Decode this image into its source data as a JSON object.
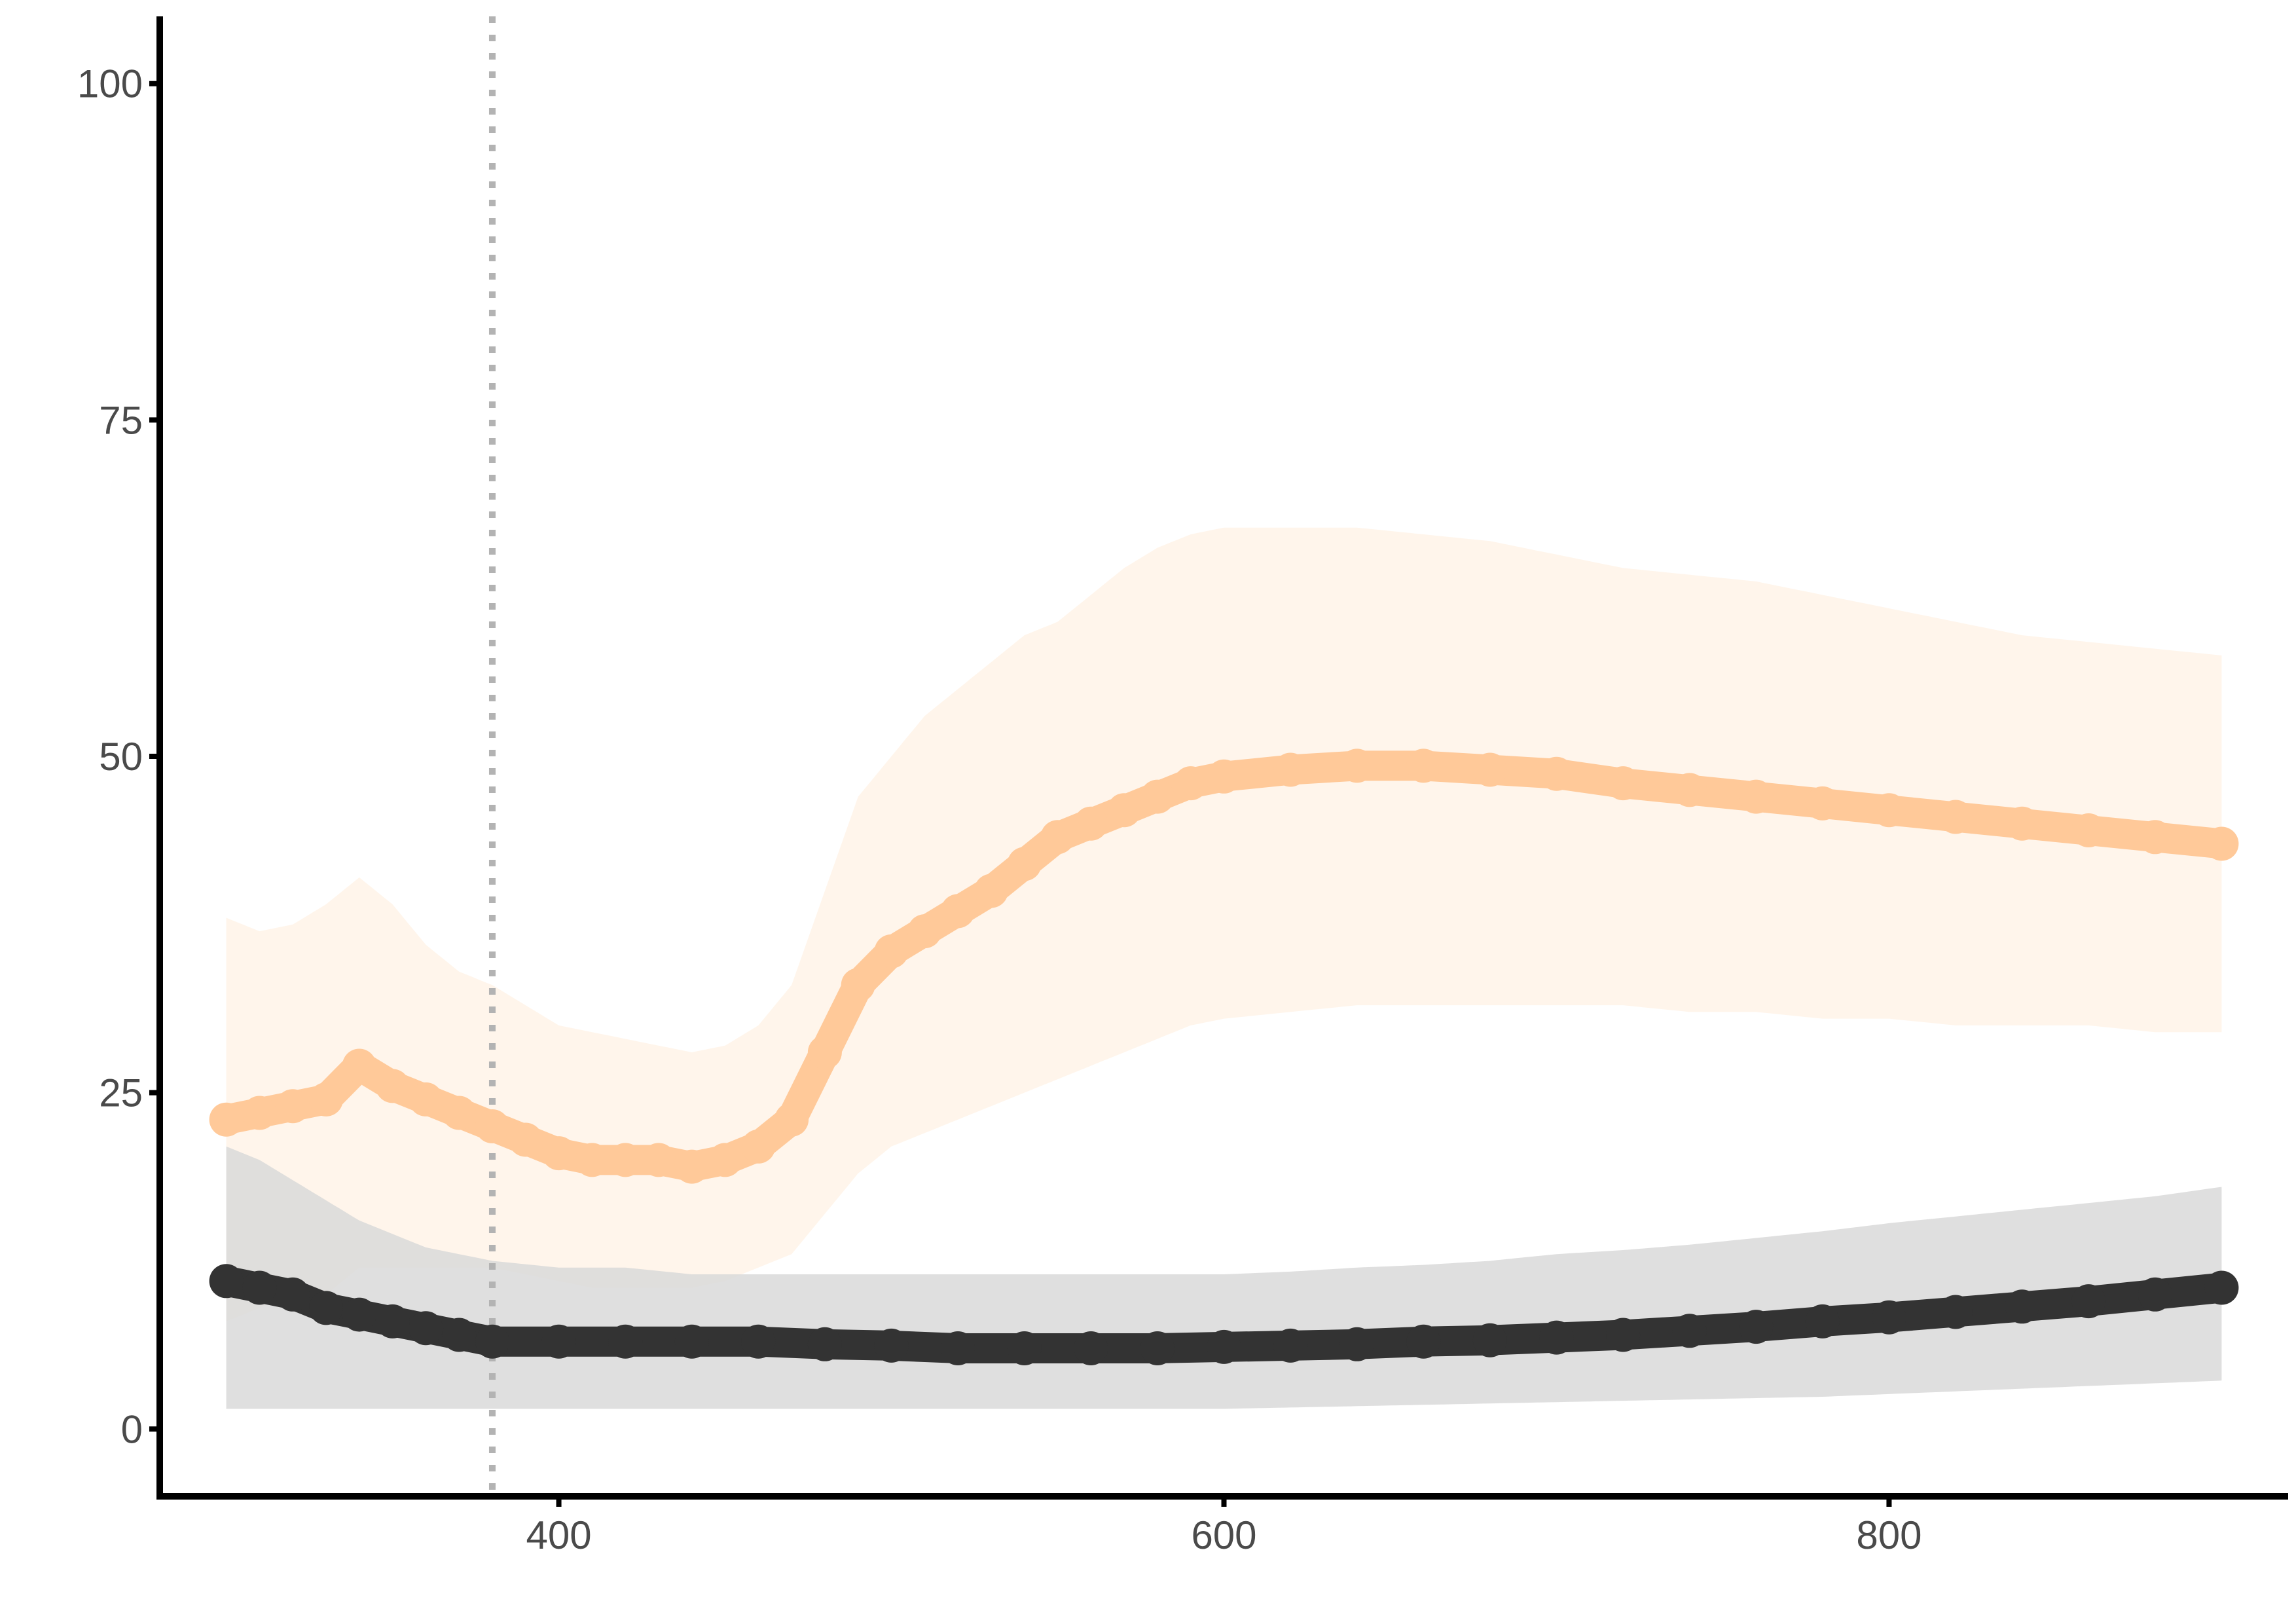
{
  "chart_data": {
    "type": "line",
    "title": "",
    "xlabel": "",
    "ylabel": "",
    "xlim": [
      280,
      920
    ],
    "ylim": [
      -5,
      105
    ],
    "x_ticks": [
      400,
      600,
      800
    ],
    "y_ticks": [
      0,
      25,
      50,
      75,
      100
    ],
    "grid": false,
    "legend": "none",
    "reference_line": {
      "x": 380,
      "style": "dotted",
      "color": "#b3b3b3"
    },
    "series": [
      {
        "color": "#ffc999",
        "band_color": "#ffe8d2",
        "x": [
          300,
          310,
          320,
          330,
          340,
          350,
          360,
          370,
          380,
          390,
          400,
          410,
          420,
          430,
          440,
          450,
          460,
          470,
          480,
          490,
          500,
          510,
          520,
          530,
          540,
          550,
          560,
          570,
          580,
          590,
          600,
          620,
          640,
          660,
          680,
          700,
          720,
          740,
          760,
          780,
          800,
          820,
          840,
          860,
          880,
          900
        ],
        "y": [
          23,
          23.5,
          24,
          24.5,
          27,
          25.5,
          24.5,
          23.5,
          22.5,
          21.5,
          20.5,
          20,
          20,
          20,
          19.5,
          20,
          21,
          23,
          28,
          33,
          35.5,
          37,
          38.5,
          40,
          42,
          44,
          45,
          46,
          47,
          48,
          48.5,
          49,
          49.3,
          49.3,
          49,
          48.7,
          48,
          47.5,
          47,
          46.5,
          46,
          45.5,
          45,
          44.5,
          44,
          43.5
        ],
        "upper": [
          38,
          37,
          37.5,
          39,
          41,
          39,
          36,
          34,
          33,
          31.5,
          30,
          29.5,
          29,
          28.5,
          28,
          28.5,
          30,
          33,
          40,
          47,
          50,
          53,
          55,
          57,
          59,
          60,
          62,
          64,
          65.5,
          66.5,
          67,
          67,
          67,
          66.5,
          66,
          65,
          64,
          63.5,
          63,
          62,
          61,
          60,
          59,
          58.5,
          58,
          57.5
        ],
        "lower": [
          8,
          9,
          10,
          10,
          12,
          12,
          12,
          12,
          12,
          11.5,
          11,
          10.5,
          10.5,
          10.5,
          10.5,
          11,
          12,
          13,
          16,
          19,
          21,
          22,
          23,
          24,
          25,
          26,
          27,
          28,
          29,
          30,
          30.5,
          31,
          31.5,
          31.5,
          31.5,
          31.5,
          31.5,
          31,
          31,
          30.5,
          30.5,
          30,
          30,
          30,
          29.5,
          29.5
        ]
      },
      {
        "color": "#333333",
        "band_color": "#d9d9d9",
        "x": [
          300,
          310,
          320,
          330,
          340,
          350,
          360,
          370,
          380,
          400,
          420,
          440,
          460,
          480,
          500,
          520,
          540,
          560,
          580,
          600,
          620,
          640,
          660,
          680,
          700,
          720,
          740,
          760,
          780,
          800,
          820,
          840,
          860,
          880,
          900
        ],
        "y": [
          11,
          10.5,
          10,
          9,
          8.5,
          8,
          7.5,
          7,
          6.5,
          6.5,
          6.5,
          6.5,
          6.5,
          6.3,
          6.2,
          6,
          6,
          6,
          6,
          6.1,
          6.2,
          6.3,
          6.5,
          6.6,
          6.8,
          7,
          7.3,
          7.6,
          8,
          8.3,
          8.7,
          9.1,
          9.5,
          10,
          10.5
        ],
        "upper": [
          21,
          20,
          18.5,
          17,
          15.5,
          14.5,
          13.5,
          13,
          12.5,
          12,
          12,
          11.5,
          11.5,
          11.5,
          11.5,
          11.5,
          11.5,
          11.5,
          11.5,
          11.5,
          11.7,
          12,
          12.2,
          12.5,
          13,
          13.3,
          13.7,
          14.2,
          14.7,
          15.3,
          15.8,
          16.3,
          16.8,
          17.3,
          18
        ],
        "lower": [
          1.5,
          1.5,
          1.5,
          1.5,
          1.5,
          1.5,
          1.5,
          1.5,
          1.5,
          1.5,
          1.5,
          1.5,
          1.5,
          1.5,
          1.5,
          1.5,
          1.5,
          1.5,
          1.5,
          1.5,
          1.6,
          1.7,
          1.8,
          1.9,
          2,
          2.1,
          2.2,
          2.3,
          2.4,
          2.6,
          2.8,
          3,
          3.2,
          3.4,
          3.6
        ]
      }
    ]
  }
}
